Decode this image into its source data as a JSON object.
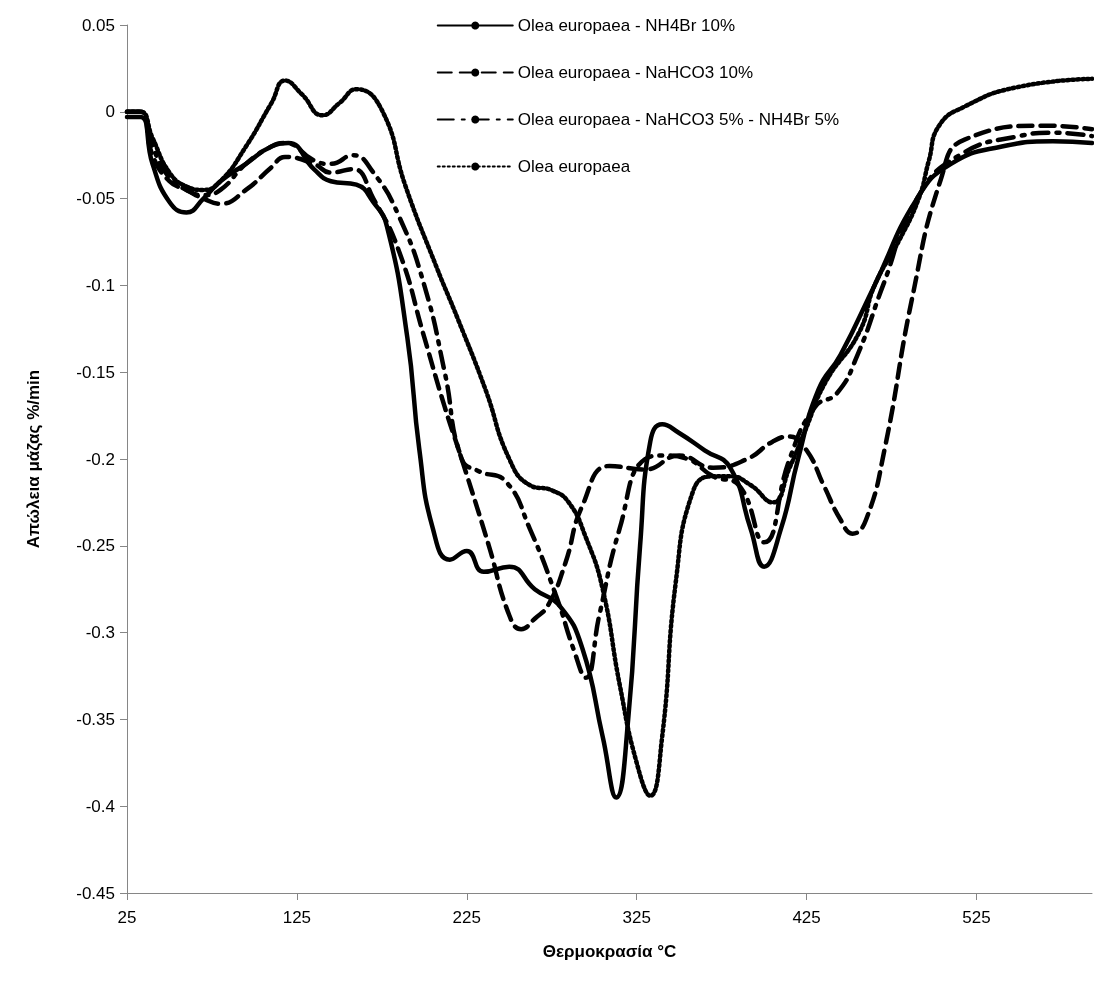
{
  "chart_data": {
    "type": "line",
    "xlabel": "Θερμοκρασία °C",
    "ylabel": "Απώλεια μάζας %/min",
    "xlim": [
      25,
      593
    ],
    "xticks": [
      25,
      125,
      225,
      325,
      425,
      525
    ],
    "ylim": [
      -0.45,
      0.05
    ],
    "yticks": [
      {
        "value": -0.45,
        "label": "-0.45"
      },
      {
        "value": -0.4,
        "label": "-0.4"
      },
      {
        "value": -0.35,
        "label": "-0.35"
      },
      {
        "value": -0.3,
        "label": "-0.3"
      },
      {
        "value": -0.25,
        "label": "-0.25"
      },
      {
        "value": -0.2,
        "label": "-0.2"
      },
      {
        "value": -0.15,
        "label": "-0.15"
      },
      {
        "value": -0.1,
        "label": "-0.1"
      },
      {
        "value": -0.05,
        "label": "-0.05"
      },
      {
        "value": 0,
        "label": "0"
      },
      {
        "value": 0.05,
        "label": "0.05"
      }
    ],
    "grid": false,
    "legend": "top right",
    "marker": "none",
    "series": [
      {
        "name": "Olea europaea - NH4Br 10%",
        "color": "#000000",
        "line_style": "solid",
        "x": [
          25,
          33,
          40,
          50,
          60,
          70,
          80,
          95,
          110,
          120,
          135,
          145,
          160,
          170,
          178,
          190,
          197,
          205,
          215,
          225,
          235,
          250,
          265,
          280,
          293,
          305,
          313,
          320,
          327,
          333,
          340,
          350,
          365,
          380,
          392,
          400,
          410,
          420,
          432,
          445,
          465,
          490,
          510,
          540,
          570,
          593
        ],
        "values": [
          -0.003,
          -0.003,
          -0.03,
          -0.052,
          -0.058,
          -0.05,
          -0.04,
          -0.03,
          -0.02,
          -0.018,
          -0.033,
          -0.04,
          -0.042,
          -0.052,
          -0.066,
          -0.13,
          -0.194,
          -0.24,
          -0.258,
          -0.253,
          -0.265,
          -0.262,
          -0.275,
          -0.285,
          -0.309,
          -0.36,
          -0.395,
          -0.35,
          -0.25,
          -0.19,
          -0.18,
          -0.185,
          -0.195,
          -0.205,
          -0.24,
          -0.262,
          -0.24,
          -0.2,
          -0.16,
          -0.14,
          -0.1,
          -0.05,
          -0.03,
          -0.02,
          -0.017,
          -0.018
        ]
      },
      {
        "name": "Olea europaea - NaHCO3 10%",
        "color": "#000000",
        "line_style": "dashed",
        "x": [
          25,
          33,
          40,
          50,
          60,
          70,
          80,
          95,
          110,
          118,
          135,
          145,
          158,
          170,
          185,
          200,
          212,
          222,
          238,
          250,
          257,
          265,
          273,
          283,
          293,
          309,
          330,
          350,
          370,
          390,
          405,
          415,
          425,
          435,
          445,
          452,
          460,
          471,
          487,
          504,
          518,
          567,
          593
        ],
        "values": [
          0,
          0,
          -0.025,
          -0.04,
          -0.045,
          -0.05,
          -0.053,
          -0.045,
          -0.032,
          -0.026,
          -0.03,
          -0.035,
          -0.033,
          -0.05,
          -0.08,
          -0.13,
          -0.17,
          -0.2,
          -0.25,
          -0.29,
          -0.298,
          -0.292,
          -0.284,
          -0.26,
          -0.227,
          -0.204,
          -0.206,
          -0.198,
          -0.205,
          -0.2,
          -0.19,
          -0.187,
          -0.195,
          -0.215,
          -0.235,
          -0.243,
          -0.235,
          -0.194,
          -0.108,
          -0.039,
          -0.016,
          -0.008,
          -0.01
        ]
      },
      {
        "name": "Olea europaea - NaHCO3 5% - NH4Br 5%",
        "color": "#000000",
        "line_style": "dashdot",
        "x": [
          25,
          33,
          40,
          50,
          60,
          70,
          80,
          95,
          110,
          118,
          135,
          145,
          158,
          170,
          185,
          200,
          212,
          222,
          232,
          248,
          262,
          278,
          288,
          295,
          303,
          315,
          330,
          342,
          355,
          370,
          385,
          400,
          415,
          430,
          443,
          455,
          470,
          490,
          515,
          550,
          570,
          593
        ],
        "values": [
          0,
          0,
          -0.02,
          -0.038,
          -0.045,
          -0.048,
          -0.045,
          -0.03,
          -0.02,
          -0.018,
          -0.028,
          -0.03,
          -0.025,
          -0.035,
          -0.06,
          -0.1,
          -0.15,
          -0.2,
          -0.207,
          -0.213,
          -0.24,
          -0.28,
          -0.31,
          -0.326,
          -0.29,
          -0.24,
          -0.2,
          -0.198,
          -0.2,
          -0.21,
          -0.215,
          -0.248,
          -0.2,
          -0.17,
          -0.162,
          -0.14,
          -0.1,
          -0.05,
          -0.025,
          -0.014,
          -0.012,
          -0.014
        ]
      },
      {
        "name": "Olea europaea",
        "color": "#000000",
        "line_style": "dotted",
        "x": [
          25,
          33,
          40,
          50,
          60,
          70,
          80,
          95,
          110,
          118,
          128,
          140,
          150,
          160,
          175,
          189,
          207,
          220,
          236,
          250,
          262,
          275,
          285,
          295,
          305,
          315,
          325,
          333,
          340,
          348,
          358,
          369,
          380,
          392,
          405,
          415,
          424,
          436,
          456,
          465,
          479,
          491,
          497,
          503,
          518,
          548,
          593
        ],
        "values": [
          0,
          0,
          -0.015,
          -0.035,
          -0.043,
          -0.045,
          -0.04,
          -0.02,
          0.005,
          0.018,
          0.01,
          -0.002,
          0.005,
          0.013,
          0.001,
          -0.043,
          -0.089,
          -0.12,
          -0.16,
          -0.2,
          -0.215,
          -0.218,
          -0.225,
          -0.245,
          -0.275,
          -0.33,
          -0.375,
          -0.394,
          -0.36,
          -0.271,
          -0.219,
          -0.21,
          -0.21,
          -0.215,
          -0.225,
          -0.205,
          -0.184,
          -0.156,
          -0.127,
          -0.1,
          -0.075,
          -0.05,
          -0.028,
          -0.008,
          0.003,
          0.014,
          0.019
        ]
      }
    ]
  }
}
